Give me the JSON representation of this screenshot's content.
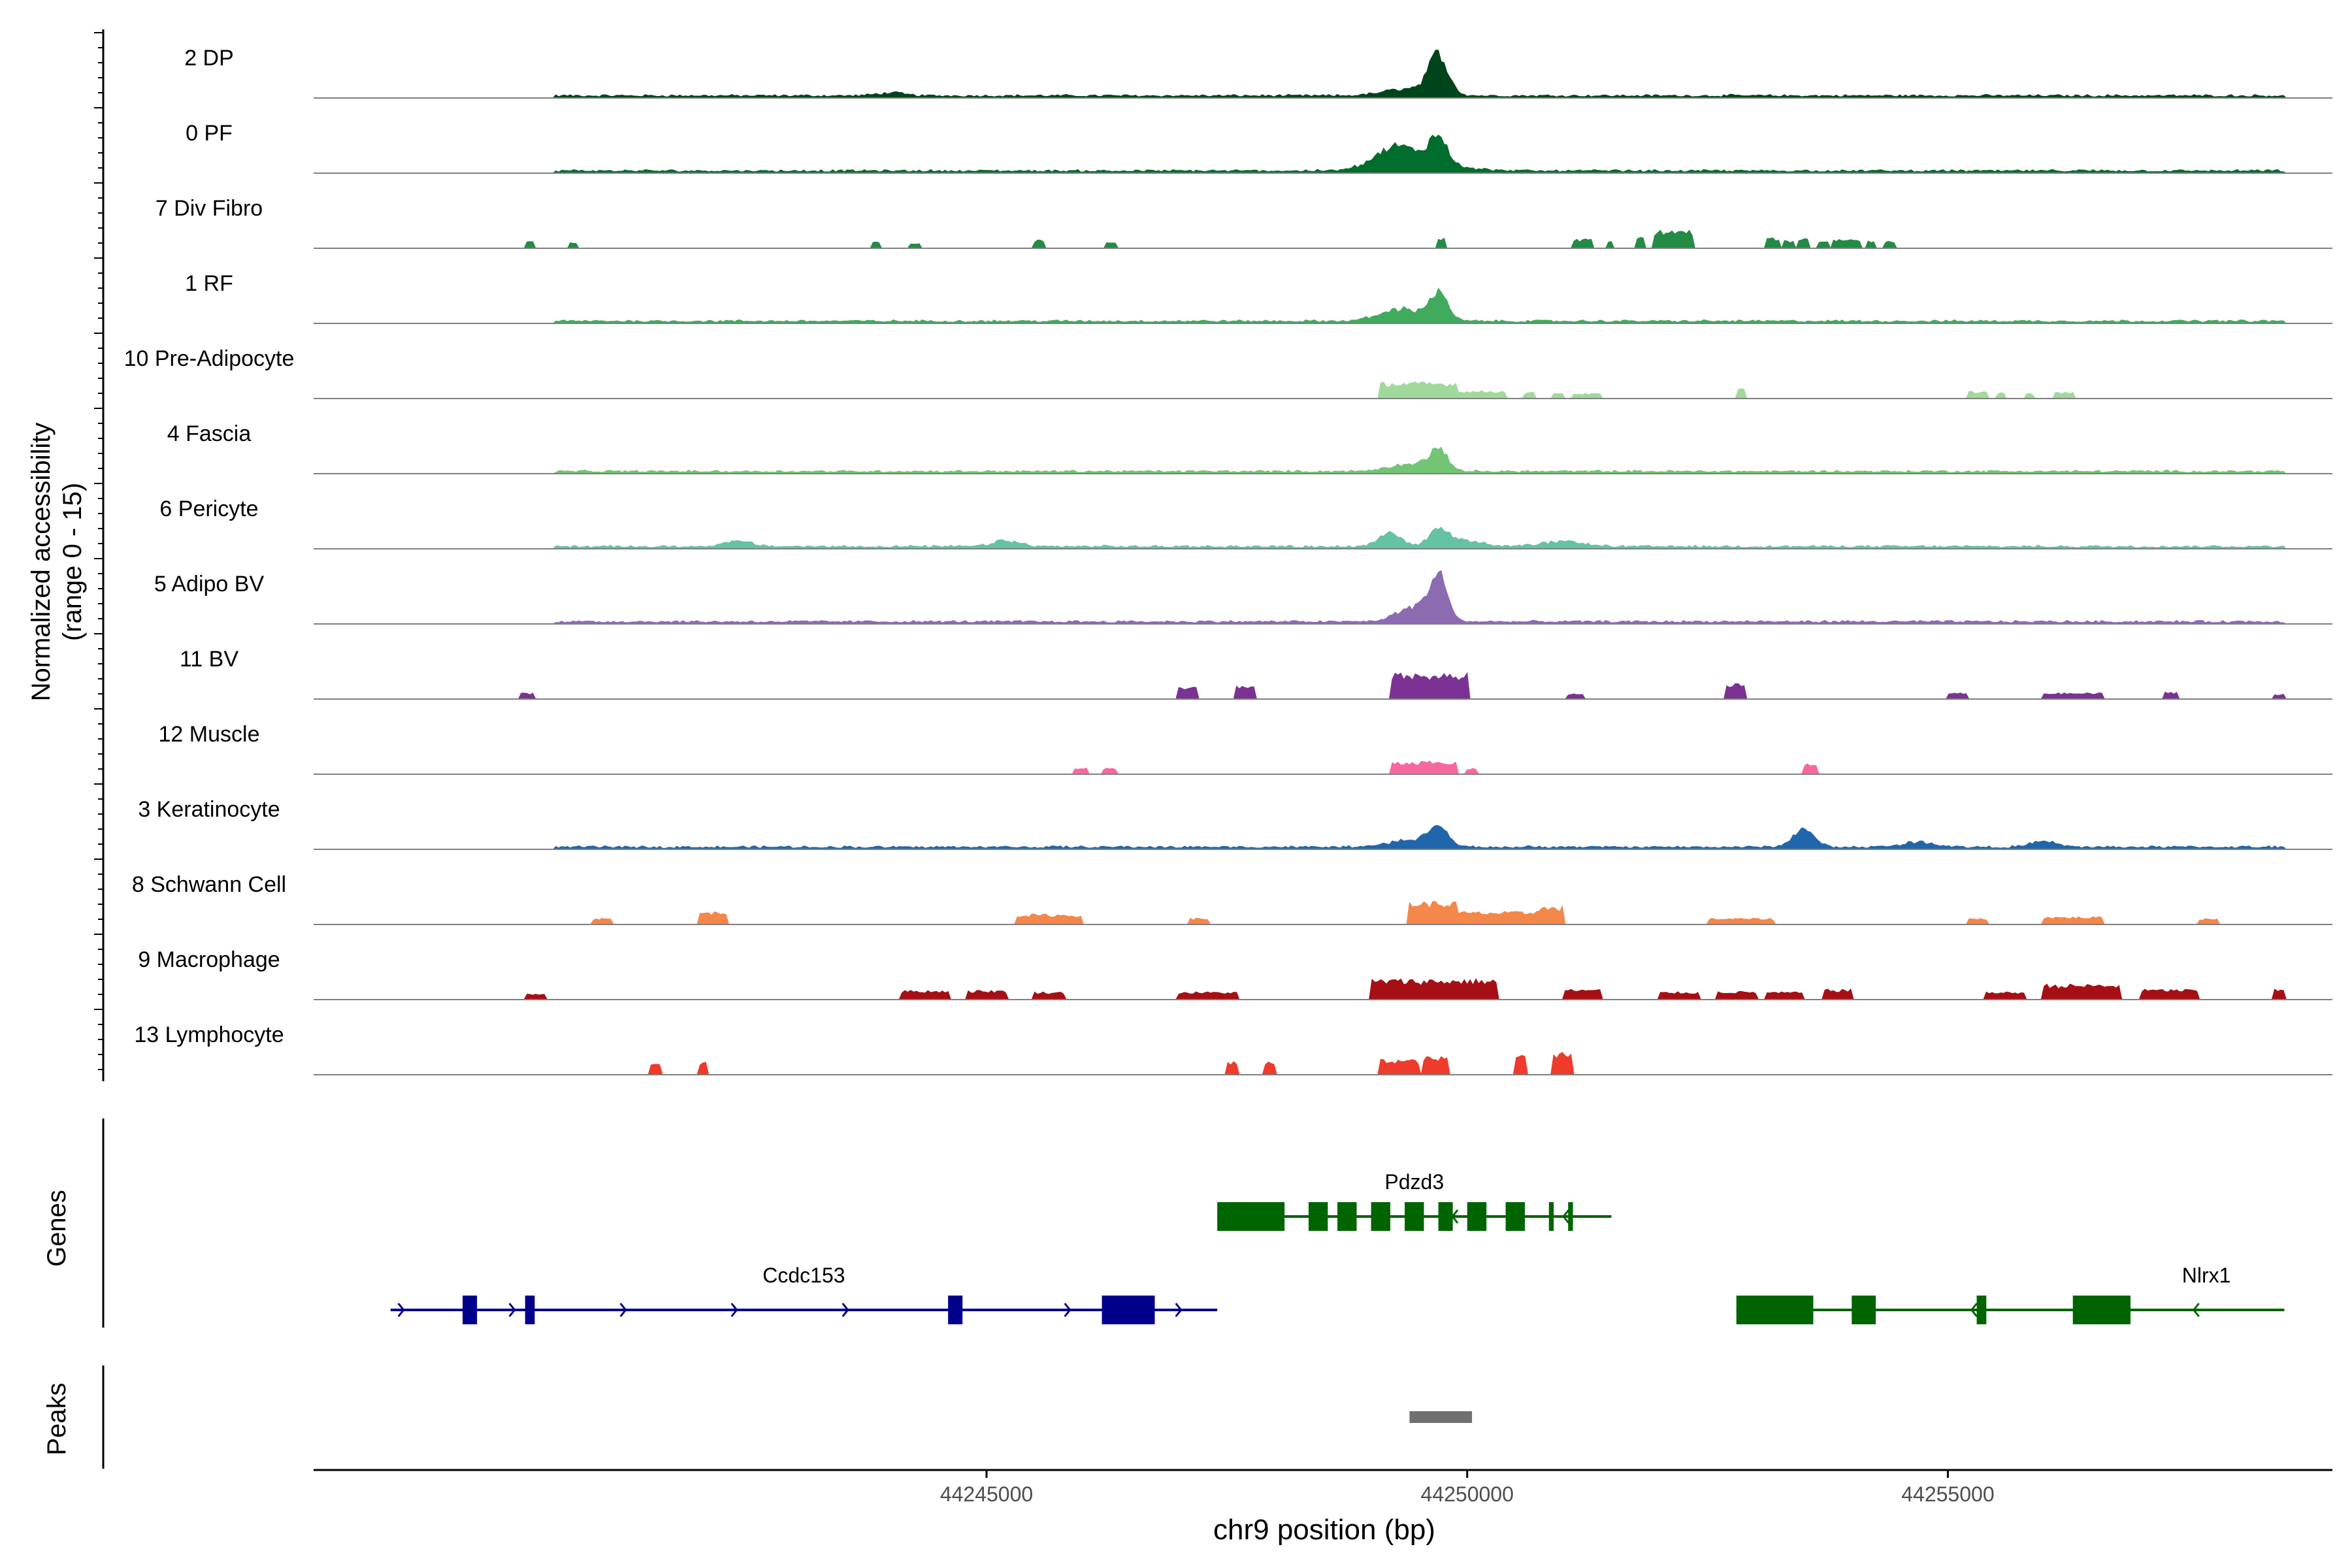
{
  "chart_data": {
    "type": "area",
    "ylabel": "Normalized accessibility",
    "ylabel_range": "(range 0 - 15)",
    "xlabel": "chr9 position (bp)",
    "xlim": [
      44238000,
      44259000
    ],
    "ylim": [
      0,
      15
    ],
    "x_ticks": [
      {
        "value": 44245000,
        "label": "44245000"
      },
      {
        "value": 44250000,
        "label": "44250000"
      },
      {
        "value": 44255000,
        "label": "44255000"
      }
    ],
    "tracks": [
      {
        "name": "2 DP",
        "color": "#00441b",
        "peaks": [
          [
            44249700,
            8,
            140
          ],
          [
            44249400,
            1.5,
            350
          ],
          [
            44244000,
            0.6,
            200
          ]
        ],
        "blocks": []
      },
      {
        "name": "0 PF",
        "color": "#006d2c",
        "peaks": [
          [
            44249700,
            5.5,
            130
          ],
          [
            44249250,
            3.5,
            300
          ],
          [
            44249500,
            2,
            500
          ]
        ],
        "blocks": []
      },
      {
        "name": "7 Div Fibro",
        "color": "#238b45",
        "peaks": [],
        "blocks": [
          [
            44240200,
            44240300,
            1.5
          ],
          [
            44240650,
            44240750,
            1.2
          ],
          [
            44243800,
            44243900,
            1.2
          ],
          [
            44244200,
            44244300,
            1
          ],
          [
            44245500,
            44245600,
            1.6
          ],
          [
            44246250,
            44246350,
            1.2
          ],
          [
            44249680,
            44249780,
            2
          ],
          [
            44251100,
            44251300,
            1.8
          ],
          [
            44251450,
            44251500,
            1.4
          ],
          [
            44251750,
            44251850,
            2.2
          ],
          [
            44251950,
            44252350,
            3.5
          ],
          [
            44253100,
            44253250,
            2
          ],
          [
            44253300,
            44253400,
            1.5
          ],
          [
            44253450,
            44253550,
            2
          ],
          [
            44253650,
            44253750,
            1.5
          ],
          [
            44253800,
            44254100,
            1.8
          ],
          [
            44254150,
            44254250,
            1.6
          ],
          [
            44254350,
            44254450,
            1.4
          ]
        ]
      },
      {
        "name": "1 RF",
        "color": "#41ab5d",
        "peaks": [
          [
            44249700,
            5.5,
            140
          ],
          [
            44249300,
            2.5,
            300
          ]
        ],
        "blocks": []
      },
      {
        "name": "10 Pre-Adipocyte",
        "color": "#a1d99b",
        "peaks": [],
        "blocks": [
          [
            44249100,
            44249900,
            3.2
          ],
          [
            44249900,
            44250400,
            1.5
          ],
          [
            44250600,
            44250700,
            1.2
          ],
          [
            44250900,
            44251000,
            1.2
          ],
          [
            44251100,
            44251400,
            1
          ],
          [
            44252800,
            44252900,
            2
          ],
          [
            44255200,
            44255400,
            1.4
          ],
          [
            44255500,
            44255600,
            1.2
          ],
          [
            44255800,
            44255900,
            1
          ],
          [
            44256100,
            44256300,
            1.2
          ]
        ]
      },
      {
        "name": "4 Fascia",
        "color": "#74c476",
        "peaks": [
          [
            44249700,
            4,
            140
          ],
          [
            44249400,
            1.5,
            300
          ]
        ],
        "blocks": []
      },
      {
        "name": "6 Pericyte",
        "color": "#66c2a4",
        "peaks": [
          [
            44249700,
            3,
            130
          ],
          [
            44249200,
            3,
            150
          ],
          [
            44249900,
            1.5,
            300
          ],
          [
            44245200,
            1.2,
            200
          ],
          [
            44242400,
            1.2,
            200
          ],
          [
            44251000,
            1,
            300
          ]
        ],
        "blocks": []
      },
      {
        "name": "5 Adipo BV",
        "color": "#8c6bb1",
        "peaks": [
          [
            44249700,
            9,
            130
          ],
          [
            44249450,
            3,
            250
          ]
        ],
        "blocks": []
      },
      {
        "name": "11 BV",
        "color": "#7b3294",
        "peaks": [],
        "blocks": [
          [
            44249200,
            44250000,
            5
          ],
          [
            44249550,
            44249850,
            2.5
          ],
          [
            44247000,
            44247200,
            2.5
          ],
          [
            44247600,
            44247800,
            2.5
          ],
          [
            44252700,
            44252900,
            3
          ],
          [
            44251050,
            44251200,
            1
          ],
          [
            44240150,
            44240300,
            1.2
          ],
          [
            44255000,
            44255200,
            1.2
          ],
          [
            44256000,
            44256600,
            1.2
          ],
          [
            44257250,
            44257400,
            1.4
          ],
          [
            44258400,
            44258500,
            1
          ]
        ]
      },
      {
        "name": "12 Muscle",
        "color": "#f768a1",
        "peaks": [],
        "blocks": [
          [
            44249200,
            44249900,
            2.5
          ],
          [
            44249650,
            44249800,
            1.5
          ],
          [
            44245900,
            44246050,
            1.2
          ],
          [
            44246200,
            44246350,
            1.2
          ],
          [
            44253500,
            44253650,
            2
          ],
          [
            44250000,
            44250100,
            1.2
          ]
        ]
      },
      {
        "name": "3 Keratinocyte",
        "color": "#2166ac",
        "peaks": [
          [
            44249700,
            4,
            140
          ],
          [
            44253500,
            3.5,
            160
          ],
          [
            44249400,
            1.5,
            300
          ],
          [
            44254700,
            1,
            250
          ],
          [
            44256000,
            1.2,
            180
          ]
        ],
        "blocks": []
      },
      {
        "name": "8 Schwann Cell",
        "color": "#f4874a",
        "peaks": [],
        "blocks": [
          [
            44249400,
            44249900,
            4.5
          ],
          [
            44249900,
            44250700,
            2.5
          ],
          [
            44250700,
            44251000,
            3.5
          ],
          [
            44242000,
            44242300,
            2.5
          ],
          [
            44245300,
            44246000,
            2
          ],
          [
            44240900,
            44241100,
            1.2
          ],
          [
            44247100,
            44247300,
            1.2
          ],
          [
            44252500,
            44253200,
            1.2
          ],
          [
            44255200,
            44255400,
            1.2
          ],
          [
            44256000,
            44256600,
            1.5
          ],
          [
            44257600,
            44257800,
            1.2
          ]
        ]
      },
      {
        "name": "9 Macrophage",
        "color": "#a50f15",
        "peaks": [],
        "blocks": [
          [
            44249000,
            44250300,
            4
          ],
          [
            44244100,
            44244600,
            1.8
          ],
          [
            44244800,
            44245200,
            1.8
          ],
          [
            44245500,
            44245800,
            1.5
          ],
          [
            44247000,
            44247600,
            1.5
          ],
          [
            44251000,
            44251400,
            2
          ],
          [
            44252000,
            44252400,
            1.5
          ],
          [
            44252600,
            44253000,
            1.6
          ],
          [
            44253100,
            44253500,
            1.5
          ],
          [
            44253700,
            44254000,
            2
          ],
          [
            44255400,
            44255800,
            1.5
          ],
          [
            44256000,
            44256800,
            3
          ],
          [
            44257000,
            44257600,
            2
          ],
          [
            44240200,
            44240400,
            1.2
          ],
          [
            44258400,
            44258500,
            2
          ]
        ]
      },
      {
        "name": "13 Lymphocyte",
        "color": "#ef3b2c",
        "peaks": [],
        "blocks": [
          [
            44241500,
            44241600,
            2.5
          ],
          [
            44242000,
            44242100,
            2.5
          ],
          [
            44247500,
            44247600,
            2.5
          ],
          [
            44247900,
            44248000,
            2.5
          ],
          [
            44249100,
            44249500,
            3
          ],
          [
            44249550,
            44249800,
            3.5
          ],
          [
            44250500,
            44250600,
            4
          ],
          [
            44250900,
            44251100,
            4.5
          ]
        ]
      }
    ],
    "genes_label": "Genes",
    "genes": [
      {
        "name": "Pdzd3",
        "color": "#006400",
        "strand": "-",
        "start": 44247400,
        "end": 44251500,
        "row": 0,
        "exons": [
          [
            44247400,
            44248100
          ],
          [
            44248350,
            44248550
          ],
          [
            44248650,
            44248850
          ],
          [
            44249000,
            44249200
          ],
          [
            44249350,
            44249550
          ],
          [
            44249700,
            44249850
          ],
          [
            44250000,
            44250200
          ],
          [
            44250400,
            44250600
          ],
          [
            44250850,
            44250900
          ],
          [
            44251050,
            44251100
          ]
        ]
      },
      {
        "name": "Ccdc153",
        "color": "#00008b",
        "strand": "+",
        "start": 44238800,
        "end": 44247400,
        "row": 1,
        "exons": [
          [
            44239550,
            44239700
          ],
          [
            44240200,
            44240300
          ],
          [
            44244600,
            44244750
          ],
          [
            44246200,
            44246750
          ]
        ]
      },
      {
        "name": "Nlrx1",
        "color": "#006400",
        "strand": "-",
        "start": 44252800,
        "end": 44258500,
        "row": 1,
        "exons": [
          [
            44252800,
            44253600
          ],
          [
            44254000,
            44254250
          ],
          [
            44255300,
            44255400
          ],
          [
            44256300,
            44256900
          ]
        ]
      }
    ],
    "peaks_label": "Peaks",
    "peak_regions": [
      [
        44249400,
        44250050
      ]
    ]
  }
}
